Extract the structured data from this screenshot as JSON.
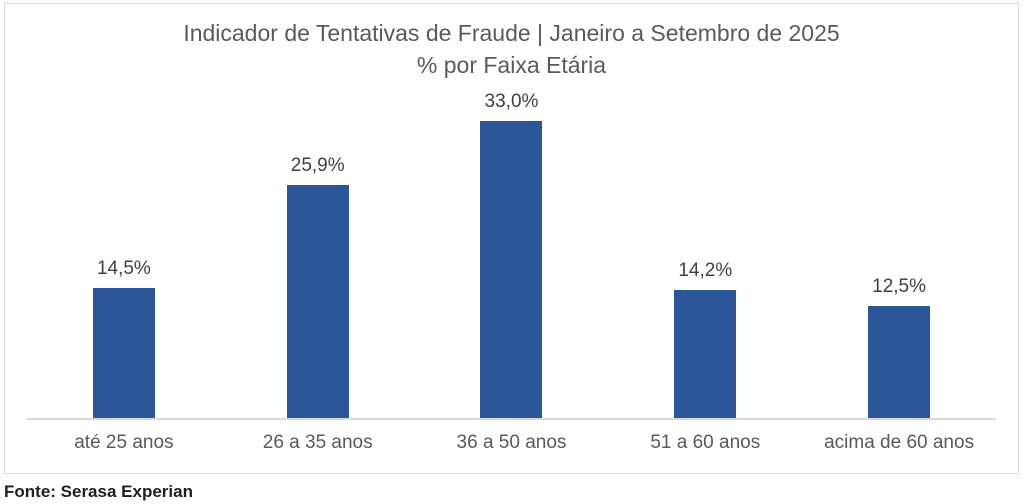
{
  "title": {
    "line1": "Indicador de Tentativas de Fraude | Janeiro a Setembro de 2025",
    "line2": "% por Faixa Etária"
  },
  "footer": {
    "source": "Fonte: Serasa Experian"
  },
  "colors": {
    "bar": "#2A5699",
    "title_text": "#5a5a5a",
    "value_label_text": "#404040",
    "category_label_text": "#595959",
    "axis_line": "#d9d9d9",
    "frame_border": "#d9d9d9"
  },
  "chart_data": {
    "type": "bar",
    "title": "Indicador de Tentativas de Fraude | Janeiro a Setembro de 2025",
    "subtitle": "% por Faixa Etária",
    "xlabel": "",
    "ylabel": "",
    "ylim": [
      0,
      35
    ],
    "grid": false,
    "legend": false,
    "categories": [
      "até 25 anos",
      "26 a 35 anos",
      "36 a 50 anos",
      "51 a 60 anos",
      "acima de 60 anos"
    ],
    "values": [
      14.5,
      25.9,
      33.0,
      14.2,
      12.5
    ],
    "value_labels": [
      "14,5%",
      "25,9%",
      "33,0%",
      "14,2%",
      "12,5%"
    ]
  }
}
